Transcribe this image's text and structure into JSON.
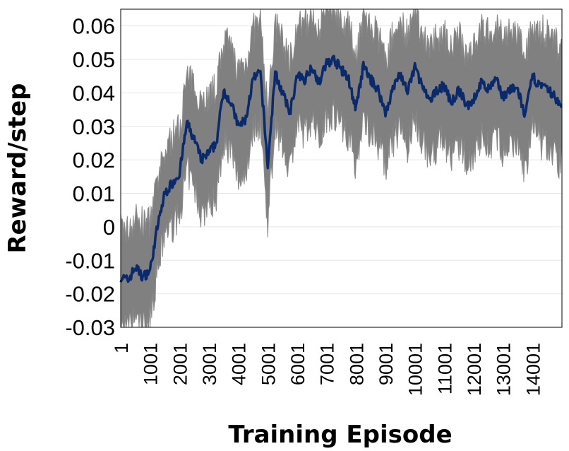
{
  "chart_data": {
    "type": "line",
    "title": "",
    "xlabel": "Training Episode",
    "ylabel": "Reward/step",
    "xlim": [
      1,
      15000
    ],
    "ylim": [
      -0.03,
      0.065
    ],
    "grid": true,
    "legend": "none",
    "x_tick_labels": [
      "1",
      "1001",
      "2001",
      "3001",
      "4001",
      "5001",
      "6001",
      "7001",
      "8001",
      "9001",
      "10001",
      "11001",
      "12001",
      "13001",
      "14001"
    ],
    "x_ticks": [
      1,
      1001,
      2001,
      3001,
      4001,
      5001,
      6001,
      7001,
      8001,
      9001,
      10001,
      11001,
      12001,
      13001,
      14001
    ],
    "y_tick_labels": [
      "0.06",
      "0.05",
      "0.04",
      "0.03",
      "0.02",
      "0.01",
      "0",
      "-0.01",
      "-0.02",
      "-0.03"
    ],
    "y_ticks": [
      0.06,
      0.05,
      0.04,
      0.03,
      0.02,
      0.01,
      0,
      -0.01,
      -0.02,
      -0.03
    ],
    "series": [
      {
        "role": "mean",
        "color": "#0a2a6b",
        "x": [
          1,
          250,
          500,
          750,
          1000,
          1250,
          1500,
          1750,
          2000,
          2250,
          2500,
          2750,
          3000,
          3250,
          3500,
          3750,
          4000,
          4250,
          4500,
          4750,
          5000,
          5250,
          5500,
          5750,
          6000,
          6250,
          6500,
          6750,
          7000,
          7250,
          7500,
          7750,
          8000,
          8250,
          8500,
          8750,
          9000,
          9250,
          9500,
          9750,
          10000,
          10250,
          10500,
          10750,
          11000,
          11250,
          11500,
          11750,
          12000,
          12250,
          12500,
          12750,
          13000,
          13250,
          13500,
          13750,
          14000,
          14250,
          14500,
          14750,
          15000
        ],
        "y": [
          -0.015,
          -0.016,
          -0.012,
          -0.015,
          -0.013,
          0.0,
          0.01,
          0.013,
          0.016,
          0.031,
          0.026,
          0.02,
          0.022,
          0.025,
          0.041,
          0.037,
          0.03,
          0.032,
          0.044,
          0.046,
          0.018,
          0.046,
          0.04,
          0.034,
          0.045,
          0.044,
          0.048,
          0.043,
          0.049,
          0.05,
          0.047,
          0.044,
          0.035,
          0.048,
          0.044,
          0.041,
          0.034,
          0.041,
          0.046,
          0.04,
          0.048,
          0.042,
          0.037,
          0.041,
          0.042,
          0.037,
          0.041,
          0.036,
          0.038,
          0.043,
          0.041,
          0.044,
          0.039,
          0.041,
          0.041,
          0.033,
          0.045,
          0.042,
          0.041,
          0.039,
          0.035
        ]
      },
      {
        "role": "spread-upper",
        "color": "#808080",
        "x": [
          1,
          250,
          500,
          750,
          1000,
          1250,
          1500,
          1750,
          2000,
          2250,
          2500,
          2750,
          3000,
          3250,
          3500,
          3750,
          4000,
          4250,
          4500,
          4750,
          5000,
          5250,
          5500,
          5750,
          6000,
          6250,
          6500,
          6750,
          7000,
          7250,
          7500,
          7750,
          8000,
          8250,
          8500,
          8750,
          9000,
          9250,
          9500,
          9750,
          10000,
          10250,
          10500,
          10750,
          11000,
          11250,
          11500,
          11750,
          12000,
          12250,
          12500,
          12750,
          13000,
          13250,
          13500,
          13750,
          14000,
          14250,
          14500,
          14750,
          15000
        ],
        "y": [
          0.0,
          -0.001,
          0.003,
          0.001,
          0.002,
          0.013,
          0.022,
          0.027,
          0.03,
          0.045,
          0.042,
          0.038,
          0.039,
          0.042,
          0.056,
          0.053,
          0.047,
          0.049,
          0.059,
          0.061,
          0.035,
          0.06,
          0.056,
          0.05,
          0.06,
          0.06,
          0.064,
          0.06,
          0.065,
          0.066,
          0.063,
          0.06,
          0.052,
          0.063,
          0.06,
          0.057,
          0.05,
          0.057,
          0.062,
          0.057,
          0.064,
          0.058,
          0.054,
          0.057,
          0.058,
          0.054,
          0.057,
          0.052,
          0.055,
          0.059,
          0.058,
          0.061,
          0.056,
          0.058,
          0.058,
          0.05,
          0.061,
          0.059,
          0.058,
          0.056,
          0.052
        ]
      },
      {
        "role": "spread-lower",
        "color": "#808080",
        "x": [
          1,
          250,
          500,
          750,
          1000,
          1250,
          1500,
          1750,
          2000,
          2250,
          2500,
          2750,
          3000,
          3250,
          3500,
          3750,
          4000,
          4250,
          4500,
          4750,
          5000,
          5250,
          5500,
          5750,
          6000,
          6250,
          6500,
          6750,
          7000,
          7250,
          7500,
          7750,
          8000,
          8250,
          8500,
          8750,
          9000,
          9250,
          9500,
          9750,
          10000,
          10250,
          10500,
          10750,
          11000,
          11250,
          11500,
          11750,
          12000,
          12250,
          12500,
          12750,
          13000,
          13250,
          13500,
          13750,
          14000,
          14250,
          14500,
          14750,
          15000
        ],
        "y": [
          -0.03,
          -0.031,
          -0.027,
          -0.03,
          -0.028,
          -0.013,
          -0.002,
          0.0,
          0.003,
          0.017,
          0.011,
          0.004,
          0.006,
          0.009,
          0.026,
          0.022,
          0.014,
          0.016,
          0.029,
          0.031,
          0.001,
          0.031,
          0.024,
          0.018,
          0.03,
          0.028,
          0.032,
          0.026,
          0.033,
          0.034,
          0.031,
          0.027,
          0.018,
          0.032,
          0.028,
          0.025,
          0.018,
          0.025,
          0.03,
          0.023,
          0.032,
          0.026,
          0.02,
          0.024,
          0.026,
          0.02,
          0.024,
          0.02,
          0.021,
          0.027,
          0.024,
          0.027,
          0.022,
          0.024,
          0.024,
          0.016,
          0.029,
          0.025,
          0.024,
          0.022,
          0.018
        ]
      }
    ]
  }
}
